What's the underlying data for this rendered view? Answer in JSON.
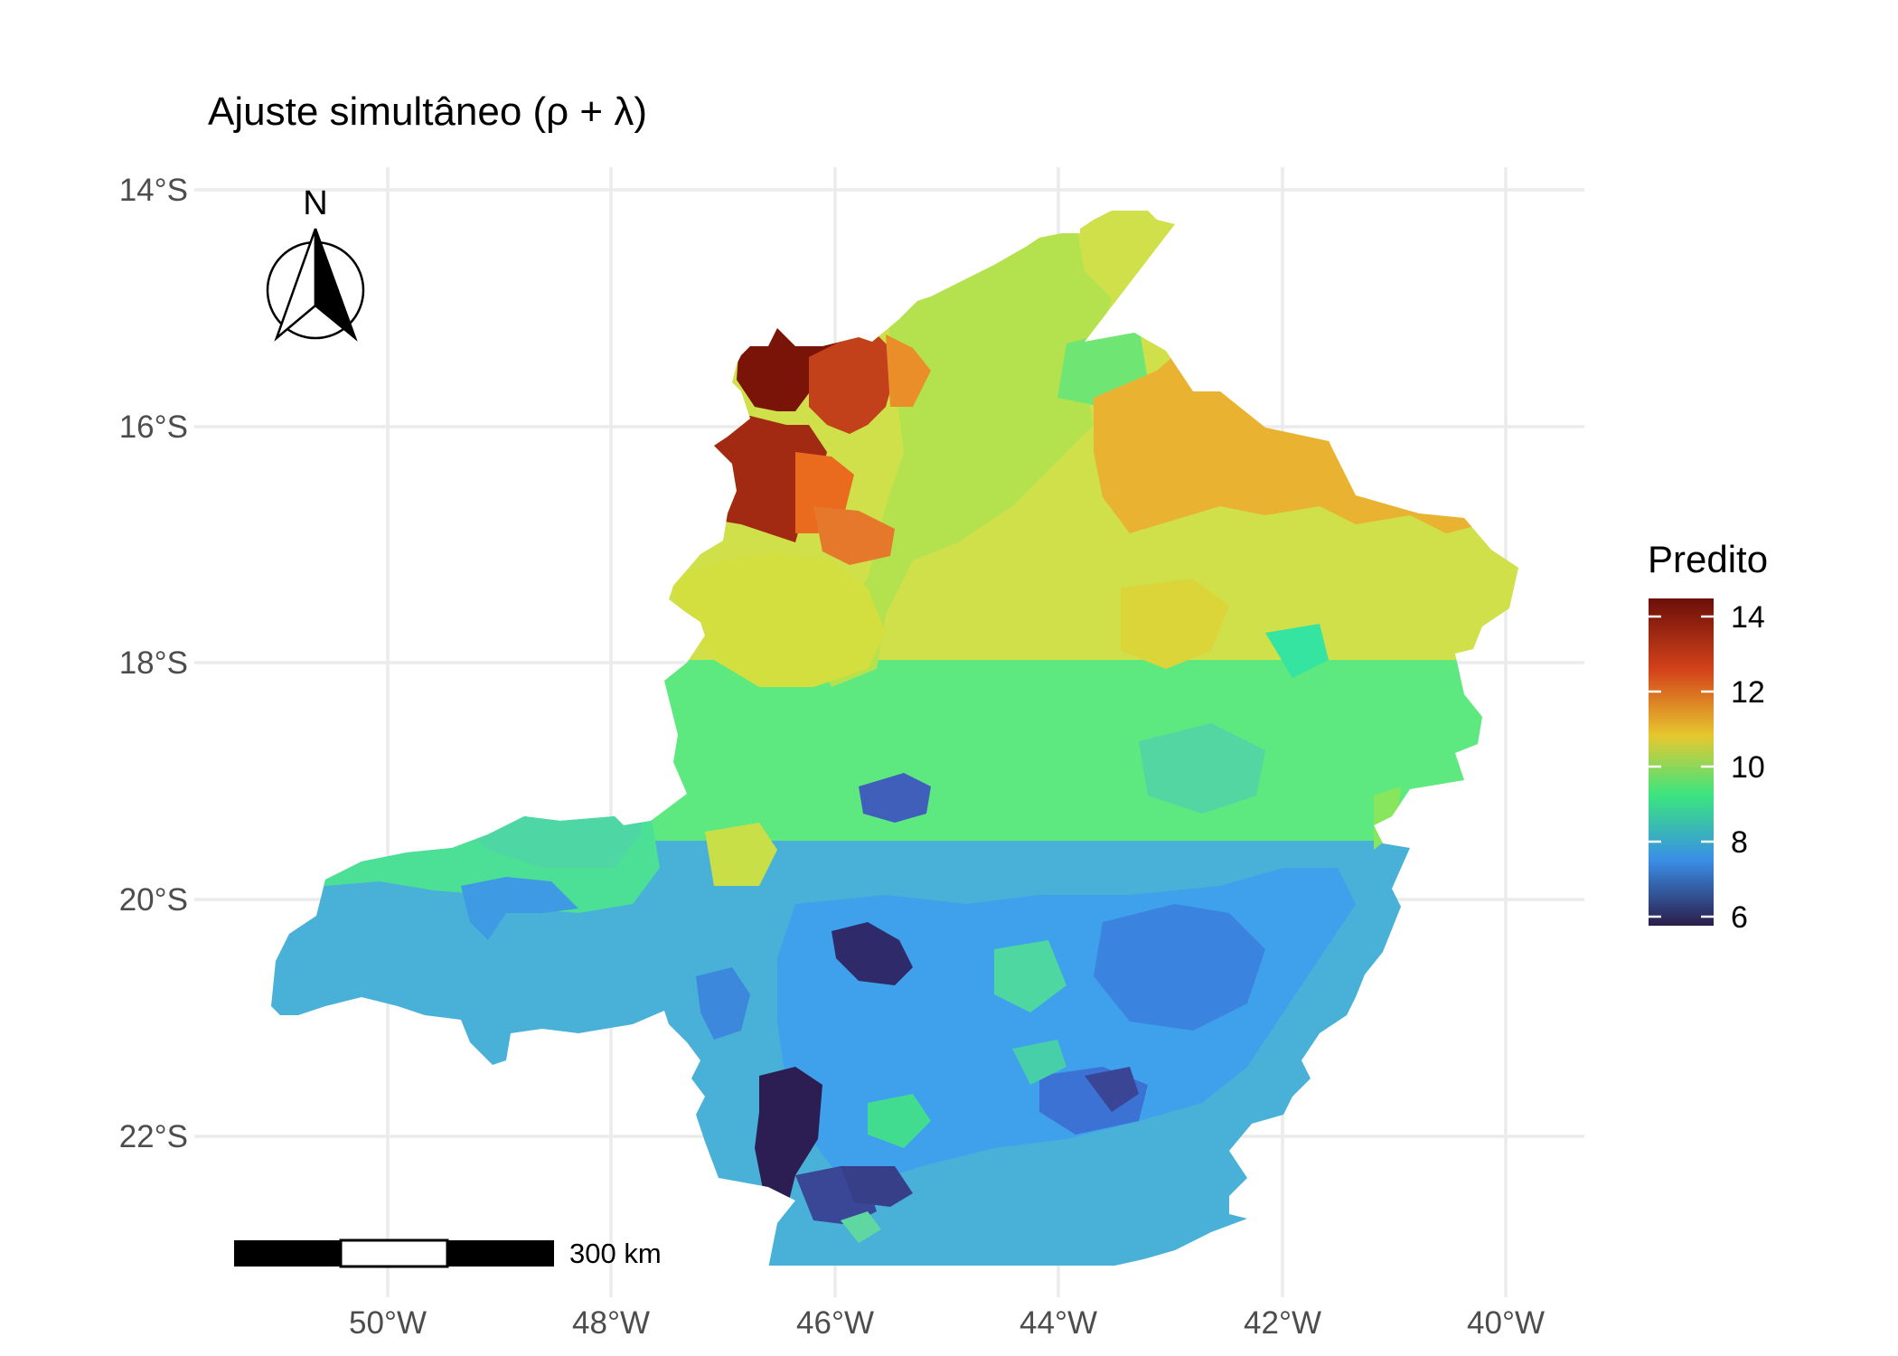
{
  "title": "Ajuste simultâneo (ρ + λ)",
  "axes": {
    "y_ticks": [
      "14°S",
      "16°S",
      "18°S",
      "20°S",
      "22°S"
    ],
    "x_ticks": [
      "50°W",
      "48°W",
      "46°W",
      "44°W",
      "42°W",
      "40°W"
    ]
  },
  "north_arrow": {
    "label": "N"
  },
  "scale_bar": {
    "label": "300 km"
  },
  "legend": {
    "title": "Predito",
    "labels": [
      "14",
      "12",
      "10",
      "8",
      "6"
    ],
    "colors": [
      "#6b0f0a",
      "#e2431a",
      "#e6c82f",
      "#2fee8a",
      "#3a8ee6",
      "#2b1e4a"
    ]
  },
  "map_colors": {
    "dark_red": "#7a1408",
    "red": "#c5421a",
    "orange": "#e98a28",
    "amber": "#eaa72e",
    "yellow": "#dcdc3c",
    "light_green": "#a6e34f",
    "green": "#3de87d",
    "teal": "#44d6a8",
    "sky": "#42a4ee",
    "blue": "#3c79dc",
    "navy": "#3a3f8c",
    "deep": "#2c1d50"
  }
}
